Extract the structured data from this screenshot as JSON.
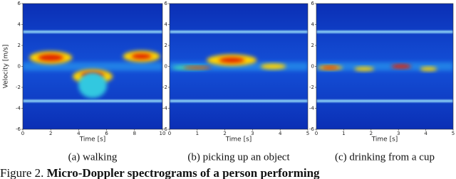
{
  "panels": [
    {
      "caption": "(a) walking",
      "xlabel": "Time [s]",
      "ylabel": "Velocity [m/s]",
      "xlim": [
        0,
        10
      ],
      "xticks": [
        0,
        2,
        4,
        6,
        8,
        10
      ],
      "ylim": [
        -6,
        6
      ],
      "yticks": [
        6,
        4,
        2,
        0,
        -2,
        -4,
        -6
      ]
    },
    {
      "caption": "(b) picking up an object",
      "xlabel": "Time [s]",
      "xlim": [
        0,
        5
      ],
      "xticks": [
        0,
        1,
        2,
        3,
        4,
        5
      ],
      "ylim": [
        -6,
        6
      ],
      "yticks": [
        6,
        4,
        2,
        0,
        -2,
        -4,
        -6
      ]
    },
    {
      "caption": "(c) drinking from a cup",
      "xlabel": "Time [s]",
      "xlim": [
        0,
        5
      ],
      "xticks": [
        0,
        1,
        2,
        3,
        4,
        5
      ],
      "ylim": [
        -6,
        6
      ],
      "yticks": [
        6,
        4,
        2,
        0,
        -2,
        -4,
        -6
      ]
    }
  ],
  "figure_caption": {
    "label": "Figure 2.",
    "text": "Micro-Doppler spectrograms of a person performing"
  }
}
